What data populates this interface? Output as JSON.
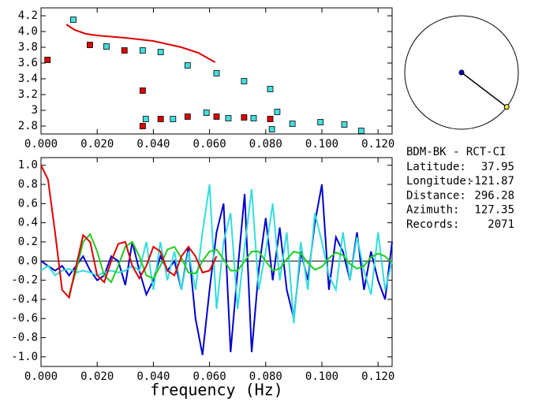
{
  "chart_data": [
    {
      "type": "line",
      "xlim": [
        0,
        0.125
      ],
      "ylim": [
        2.7,
        4.3
      ],
      "xticks": [
        {
          "value": 0,
          "label": "0.000"
        },
        {
          "value": 0.02,
          "label": "0.020"
        },
        {
          "value": 0.04,
          "label": "0.040"
        },
        {
          "value": 0.06,
          "label": "0.060"
        },
        {
          "value": 0.08,
          "label": "0.080"
        },
        {
          "value": 0.1,
          "label": "0.100"
        },
        {
          "value": 0.12,
          "label": "0.120"
        }
      ],
      "yticks": [
        2.8,
        3.0,
        3.2,
        3.4,
        3.6,
        3.8,
        {
          "value": 4.0,
          "label": "4.0"
        },
        4.2
      ],
      "series": [
        {
          "mode": "line",
          "color": "#dd0000",
          "x": [
            0.009,
            0.012,
            0.016,
            0.02,
            0.03,
            0.04,
            0.05,
            0.056,
            0.062
          ],
          "values": [
            4.09,
            4.02,
            3.97,
            3.95,
            3.92,
            3.88,
            3.8,
            3.73,
            3.61
          ]
        },
        {
          "mode": "markers",
          "color": "#44dddd",
          "x": [
            0.0115,
            0.0233,
            0.0362,
            0.0426,
            0.0522,
            0.0625,
            0.0723,
            0.0816,
            0.0373,
            0.047,
            0.0589,
            0.0667,
            0.0757,
            0.0841,
            0.0822,
            0.0895,
            0.0995,
            0.108,
            0.114
          ],
          "values": [
            4.15,
            3.81,
            3.76,
            3.74,
            3.57,
            3.47,
            3.37,
            3.27,
            2.89,
            2.89,
            2.97,
            2.9,
            2.9,
            2.98,
            2.76,
            2.83,
            2.85,
            2.82,
            2.74
          ]
        },
        {
          "mode": "markers",
          "color": "#dd0000",
          "x": [
            0.0023,
            0.0174,
            0.0297,
            0.0362,
            0.0362,
            0.0426,
            0.0522,
            0.0625,
            0.0723,
            0.0816
          ],
          "values": [
            3.64,
            3.83,
            3.76,
            3.25,
            2.8,
            2.89,
            2.92,
            2.92,
            2.91,
            2.89
          ]
        }
      ]
    },
    {
      "type": "line",
      "x_label": "frequency (Hz)",
      "xlim": [
        0,
        0.125
      ],
      "ylim": [
        -1.1,
        1.08
      ],
      "xticks": [
        {
          "value": 0,
          "label": "0.000"
        },
        {
          "value": 0.02,
          "label": "0.020"
        },
        {
          "value": 0.04,
          "label": "0.040"
        },
        {
          "value": 0.06,
          "label": "0.060"
        },
        {
          "value": 0.08,
          "label": "0.080"
        },
        {
          "value": 0.1,
          "label": "0.100"
        },
        {
          "value": 0.12,
          "label": "0.120"
        }
      ],
      "yticks": [
        {
          "value": -1.0,
          "label": "-1.0"
        },
        -0.8,
        -0.6,
        -0.4,
        -0.2,
        {
          "value": 0,
          "label": "0.0"
        },
        0.2,
        0.4,
        0.6,
        0.8,
        {
          "value": 1.0,
          "label": "1.0"
        }
      ],
      "series": [
        {
          "mode": "line",
          "color": "#0000cc",
          "x": [
            0,
            0.0025,
            0.005,
            0.0075,
            0.01,
            0.0125,
            0.015,
            0.0175,
            0.02,
            0.0225,
            0.025,
            0.0275,
            0.03,
            0.0325,
            0.035,
            0.0375,
            0.04,
            0.0425,
            0.045,
            0.0475,
            0.05,
            0.0525,
            0.055,
            0.0575,
            0.06,
            0.0625,
            0.065,
            0.0675,
            0.07,
            0.0725,
            0.075,
            0.0775,
            0.08,
            0.0825,
            0.085,
            0.0875,
            0.09,
            0.0925,
            0.095,
            0.0975,
            0.1,
            0.1025,
            0.105,
            0.1075,
            0.11,
            0.1125,
            0.115,
            0.1175,
            0.12,
            0.1225,
            0.125
          ],
          "values": [
            0.0,
            -0.05,
            -0.1,
            -0.05,
            -0.15,
            -0.05,
            0.05,
            -0.1,
            -0.2,
            -0.15,
            0.05,
            0.0,
            -0.25,
            0.2,
            -0.1,
            -0.35,
            -0.2,
            0.05,
            -0.1,
            0.0,
            -0.3,
            0.15,
            -0.6,
            -0.98,
            -0.3,
            0.3,
            0.6,
            -0.95,
            -0.1,
            0.7,
            -0.95,
            -0.1,
            0.45,
            -0.2,
            0.35,
            -0.3,
            -0.6,
            0.1,
            -0.2,
            0.4,
            0.8,
            -0.3,
            0.25,
            0.1,
            -0.2,
            0.3,
            -0.3,
            0.1,
            -0.2,
            -0.4,
            0.2
          ]
        },
        {
          "mode": "line",
          "color": "#33dddd",
          "x": [
            0,
            0.0025,
            0.005,
            0.0075,
            0.01,
            0.0125,
            0.015,
            0.0175,
            0.02,
            0.0225,
            0.025,
            0.0275,
            0.03,
            0.0325,
            0.035,
            0.0375,
            0.04,
            0.0425,
            0.045,
            0.0475,
            0.05,
            0.0525,
            0.055,
            0.0575,
            0.06,
            0.0625,
            0.065,
            0.0675,
            0.07,
            0.0725,
            0.075,
            0.0775,
            0.08,
            0.0825,
            0.085,
            0.0875,
            0.09,
            0.0925,
            0.095,
            0.0975,
            0.1,
            0.1025,
            0.105,
            0.1075,
            0.11,
            0.1125,
            0.115,
            0.1175,
            0.12,
            0.1225,
            0.125
          ],
          "values": [
            -0.1,
            -0.05,
            -0.15,
            -0.1,
            -0.08,
            -0.12,
            -0.1,
            -0.12,
            -0.15,
            -0.12,
            -0.1,
            -0.12,
            -0.1,
            -0.05,
            -0.1,
            0.2,
            -0.3,
            0.2,
            -0.2,
            0.1,
            -0.3,
            0.1,
            -0.3,
            0.3,
            0.8,
            -0.5,
            0.2,
            0.5,
            -0.5,
            0.15,
            0.75,
            -0.3,
            0.1,
            0.6,
            -0.2,
            0.3,
            -0.65,
            0.2,
            -0.3,
            0.5,
            0.2,
            -0.15,
            -0.3,
            0.3,
            -0.2,
            0.25,
            -0.1,
            -0.35,
            0.3,
            -0.3,
            0.0
          ]
        },
        {
          "mode": "line",
          "color": "#22cc22",
          "x": [
            0.01,
            0.0125,
            0.015,
            0.0175,
            0.02,
            0.0225,
            0.025,
            0.0275,
            0.03,
            0.0325,
            0.035,
            0.0375,
            0.04,
            0.0425,
            0.045,
            0.0475,
            0.05,
            0.0525,
            0.055,
            0.0575,
            0.06,
            0.0625,
            0.065,
            0.0675,
            0.07,
            0.0725,
            0.075,
            0.0775,
            0.08,
            0.0825,
            0.085,
            0.0875,
            0.09,
            0.0925,
            0.095,
            0.0975,
            0.1,
            0.1025,
            0.105,
            0.1075,
            0.11,
            0.1125,
            0.115,
            0.1175,
            0.12,
            0.1225,
            0.125
          ],
          "values": [
            -0.35,
            -0.1,
            0.2,
            0.28,
            0.1,
            -0.15,
            -0.22,
            -0.05,
            0.15,
            0.2,
            0.05,
            -0.15,
            -0.18,
            -0.05,
            0.12,
            0.15,
            0.03,
            -0.12,
            -0.13,
            0,
            0.1,
            0.12,
            0.02,
            -0.1,
            -0.1,
            0,
            0.1,
            0.1,
            0,
            -0.1,
            -0.08,
            0.02,
            0.1,
            0.08,
            -0.02,
            -0.09,
            -0.06,
            0.03,
            0.09,
            0.06,
            -0.03,
            -0.08,
            -0.05,
            0.04,
            0.08,
            0.05,
            -0.02
          ]
        },
        {
          "mode": "line",
          "color": "#dd0000",
          "x": [
            0,
            0.0025,
            0.005,
            0.0075,
            0.01,
            0.0125,
            0.015,
            0.0175,
            0.02,
            0.0225,
            0.025,
            0.0275,
            0.03,
            0.0325,
            0.035,
            0.0375,
            0.04,
            0.0425,
            0.045,
            0.0475,
            0.05,
            0.0525,
            0.055,
            0.0575,
            0.06,
            0.0625
          ],
          "values": [
            1.0,
            0.85,
            0.3,
            -0.3,
            -0.38,
            -0.05,
            0.27,
            0.2,
            -0.15,
            -0.22,
            0.0,
            0.18,
            0.2,
            -0.05,
            -0.18,
            -0.05,
            0.15,
            0.1,
            -0.1,
            -0.15,
            0.05,
            0.15,
            0.05,
            -0.12,
            -0.1,
            0.05
          ]
        }
      ]
    }
  ],
  "info": {
    "title": "BDM-BK - RCT-CI",
    "rows": [
      {
        "label": "Latitude:",
        "value": 37.95
      },
      {
        "label": "Longitude:",
        "value": -121.87
      },
      {
        "label": "Distance:",
        "value": 296.28
      },
      {
        "label": "Azimuth:",
        "value": 127.35
      },
      {
        "label": "Records:",
        "value": 2071
      }
    ]
  }
}
